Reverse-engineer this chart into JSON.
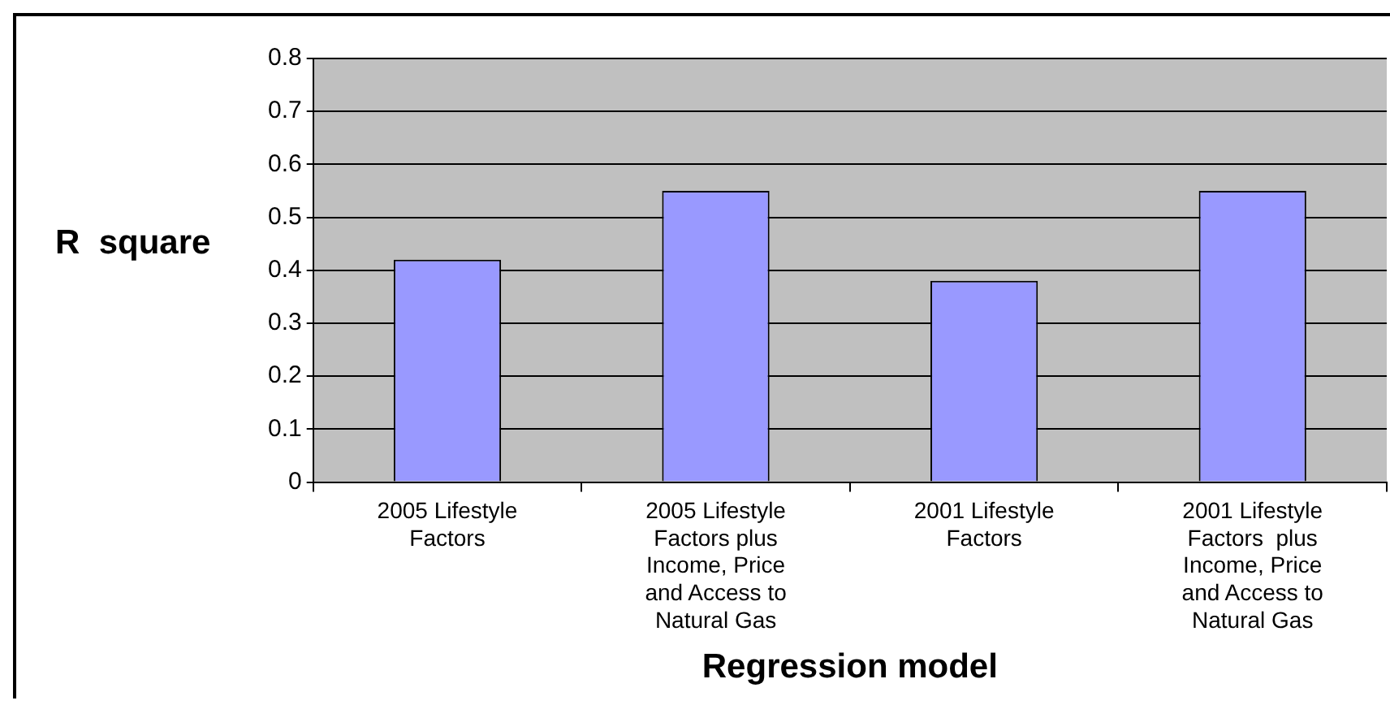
{
  "chart_data": {
    "type": "bar",
    "ylabel": "R  square",
    "xlabel": "Regression model",
    "categories": [
      "2005 Lifestyle Factors",
      "2005 Lifestyle Factors plus Income, Price and Access to Natural Gas",
      "2001 Lifestyle Factors",
      "2001 Lifestyle Factors  plus Income, Price and Access to Natural Gas"
    ],
    "values": [
      0.42,
      0.55,
      0.38,
      0.55
    ],
    "color": "#9999ff",
    "ylim": [
      0,
      0.8
    ],
    "yticks": [
      0,
      0.1,
      0.2,
      0.3,
      0.4,
      0.5,
      0.6,
      0.7,
      0.8
    ],
    "grid": "y",
    "legend": false
  }
}
